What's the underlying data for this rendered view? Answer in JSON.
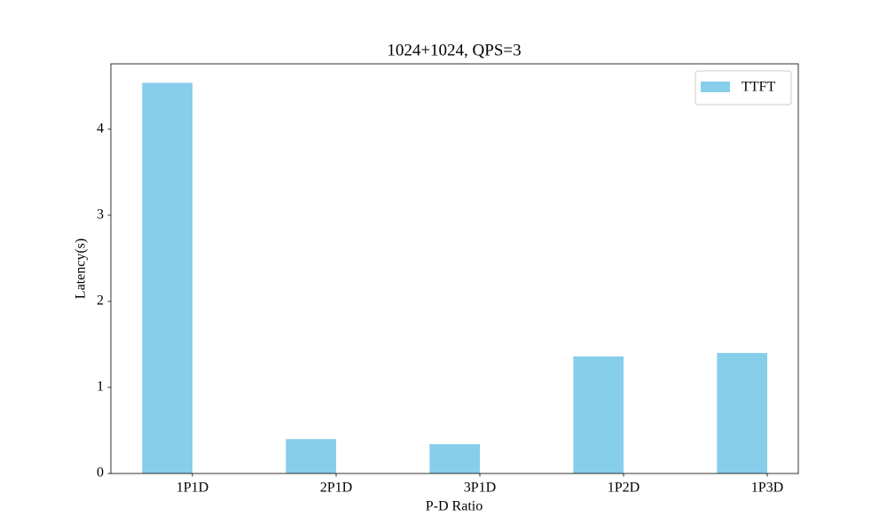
{
  "chart_data": {
    "type": "bar",
    "title": "1024+1024, QPS=3",
    "xlabel": "P-D Ratio",
    "ylabel": "Latency(s)",
    "categories": [
      "1P1D",
      "2P1D",
      "3P1D",
      "1P2D",
      "1P3D"
    ],
    "series": [
      {
        "name": "TTFT",
        "color": "#87ceeb",
        "values": [
          4.54,
          0.4,
          0.34,
          1.36,
          1.4
        ]
      }
    ],
    "ylim": [
      0,
      4.76
    ],
    "yticks": [
      0,
      1,
      2,
      3,
      4
    ],
    "legend": "upper right"
  }
}
